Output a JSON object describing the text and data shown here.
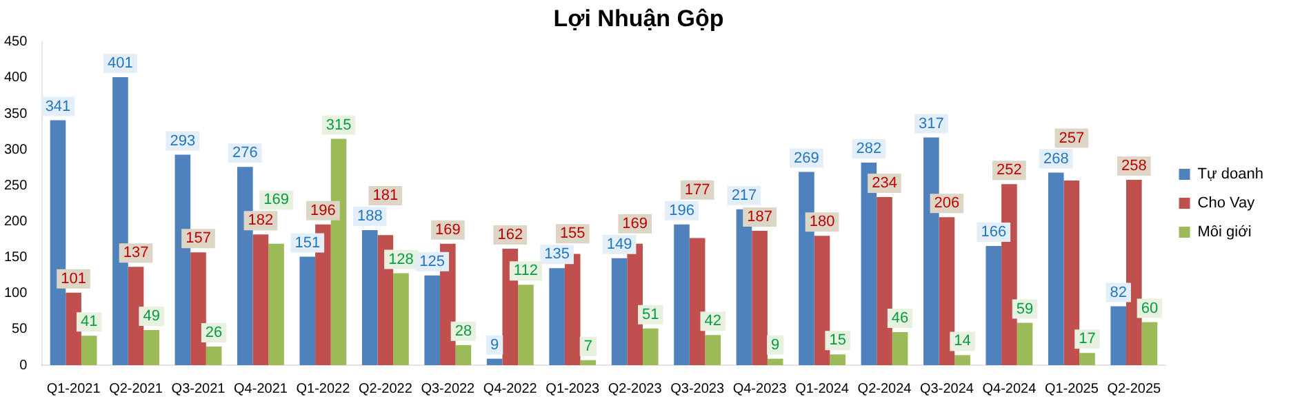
{
  "chart_data": {
    "type": "bar",
    "title": "Lợi Nhuận Gộp",
    "categories": [
      "Q1-2021",
      "Q2-2021",
      "Q3-2021",
      "Q4-2021",
      "Q1-2022",
      "Q2-2022",
      "Q3-2022",
      "Q4-2022",
      "Q1-2023",
      "Q2-2023",
      "Q3-2023",
      "Q4-2023",
      "Q1-2024",
      "Q2-2024",
      "Q3-2024",
      "Q4-2024",
      "Q1-2025",
      "Q2-2025"
    ],
    "series": [
      {
        "name": "Tự doanh",
        "color": "#4f81bd",
        "values": [
          341,
          401,
          293,
          276,
          151,
          188,
          125,
          9,
          135,
          149,
          196,
          217,
          269,
          282,
          317,
          166,
          268,
          82
        ]
      },
      {
        "name": "Cho Vay",
        "color": "#c0504d",
        "values": [
          101,
          137,
          157,
          182,
          196,
          181,
          169,
          162,
          155,
          169,
          177,
          187,
          180,
          234,
          206,
          252,
          257,
          258
        ]
      },
      {
        "name": "Môi giới",
        "color": "#9bbb59",
        "values": [
          41,
          49,
          26,
          169,
          315,
          128,
          28,
          112,
          7,
          51,
          42,
          9,
          15,
          46,
          14,
          59,
          17,
          60
        ]
      }
    ],
    "ylim": [
      0,
      450
    ],
    "yticks": [
      0,
      50,
      100,
      150,
      200,
      250,
      300,
      350,
      400,
      450
    ],
    "grid": false,
    "legend": "right",
    "data_labels": true
  }
}
